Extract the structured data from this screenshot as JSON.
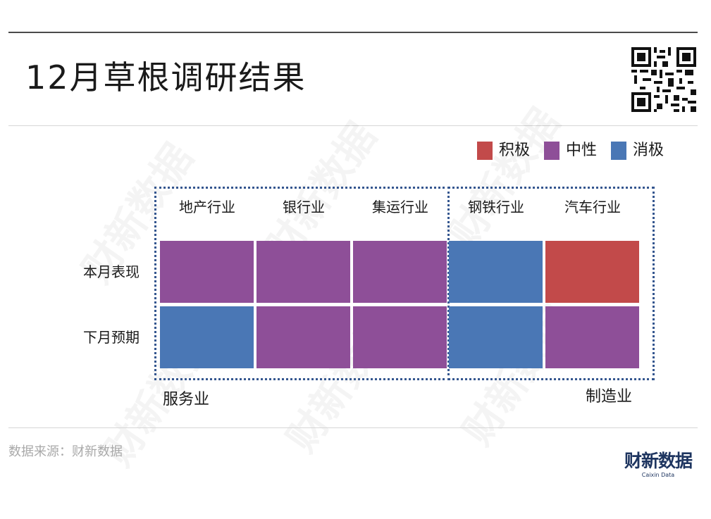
{
  "title": "12月草根调研结果",
  "legend": [
    {
      "label": "积极",
      "color": "#c24a4a"
    },
    {
      "label": "中性",
      "color": "#8e4f98"
    },
    {
      "label": "消极",
      "color": "#4a77b5"
    }
  ],
  "groups": {
    "services": "服务业",
    "manufacturing": "制造业"
  },
  "chart_data": {
    "type": "heatmap",
    "columns": [
      "地产行业",
      "银行业",
      "集运行业",
      "钢铁行业",
      "汽车行业"
    ],
    "rows": [
      "本月表现",
      "下月预期"
    ],
    "values": [
      [
        "中性",
        "中性",
        "中性",
        "消极",
        "积极"
      ],
      [
        "消极",
        "中性",
        "中性",
        "消极",
        "中性"
      ]
    ],
    "colors": {
      "积极": "#c24a4a",
      "中性": "#8e4f98",
      "消极": "#4a77b5"
    },
    "column_groups": [
      {
        "name": "服务业",
        "columns": [
          "地产行业",
          "银行业",
          "集运行业"
        ]
      },
      {
        "name": "制造业",
        "columns": [
          "钢铁行业",
          "汽车行业"
        ]
      }
    ]
  },
  "footer": {
    "source": "数据来源：财新数据",
    "brand": "财新数据",
    "brand_sub": "Caixin Data"
  },
  "watermark": "财新数据"
}
